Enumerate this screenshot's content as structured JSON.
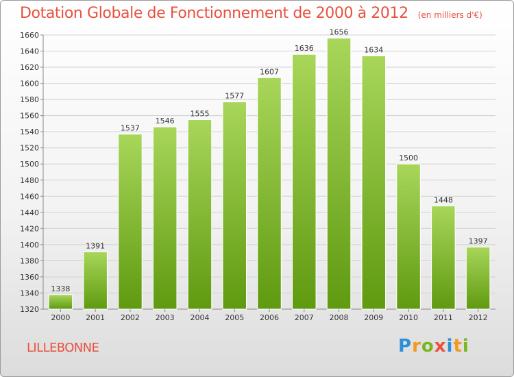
{
  "title": "Dotation Globale de Fonctionnement de 2000 à 2012",
  "subtitle": "(en milliers d'€)",
  "location": "LILLEBONNE",
  "logo": {
    "text": "Proxiti",
    "letter_colors": [
      "#2f8fd6",
      "#f29a1d",
      "#7ab51d",
      "#e8513f",
      "#2f8fd6",
      "#f29a1d",
      "#7ab51d"
    ]
  },
  "colors": {
    "title": "#e8513f",
    "bar_light": "#a8d65a",
    "bar_dark": "#5f9a10",
    "axis": "#888888",
    "grid": "#d0d0d0"
  },
  "chart_data": {
    "type": "bar",
    "title": "Dotation Globale de Fonctionnement de 2000 à 2012",
    "subtitle": "(en milliers d'€)",
    "xlabel": "",
    "ylabel": "",
    "categories": [
      "2000",
      "2001",
      "2002",
      "2003",
      "2004",
      "2005",
      "2006",
      "2007",
      "2008",
      "2009",
      "2010",
      "2011",
      "2012"
    ],
    "values": [
      1338,
      1391,
      1537,
      1546,
      1555,
      1577,
      1607,
      1636,
      1656,
      1634,
      1500,
      1448,
      1397
    ],
    "ylim": [
      1320,
      1660
    ],
    "yticks": [
      1320,
      1340,
      1360,
      1380,
      1400,
      1420,
      1440,
      1460,
      1480,
      1500,
      1520,
      1540,
      1560,
      1580,
      1600,
      1620,
      1640,
      1660
    ],
    "grid": true,
    "data_labels": true
  }
}
